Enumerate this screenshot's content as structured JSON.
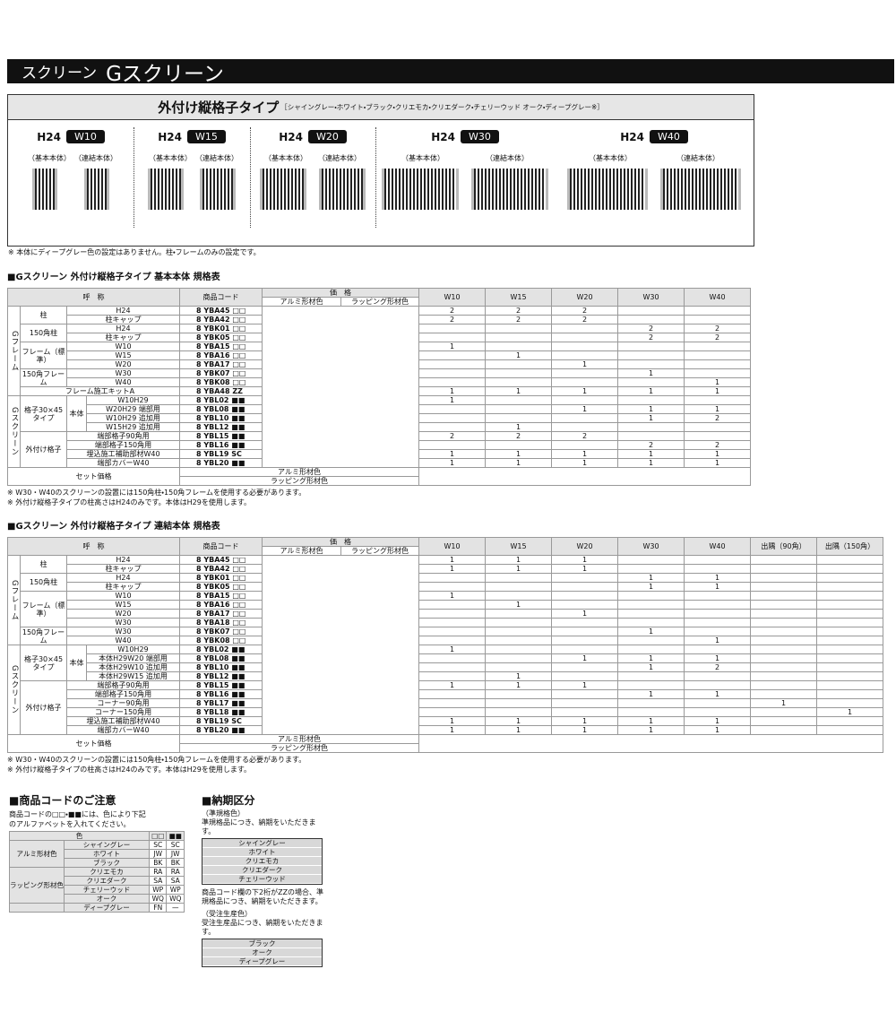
{
  "header": {
    "category": "スクリーン",
    "title": "Gスクリーン"
  },
  "panel": {
    "title": "外付け縦格子タイプ",
    "colors": "［シャイングレー・ホワイト・ブラック・クリエモカ・クリエダーク・チェリーウッド オーク・ディープグレー※］",
    "labels": [
      "（基本本体）",
      "（連結本体）"
    ],
    "items": [
      {
        "height": "H24",
        "width": "W10"
      },
      {
        "height": "H24",
        "width": "W15"
      },
      {
        "height": "H24",
        "width": "W20"
      },
      {
        "height": "H24",
        "width": "W30"
      },
      {
        "height": "H24",
        "width": "W40"
      }
    ],
    "note": "※ 本体にディープグレー色の設定はありません。柱・フレームのみの設定です。"
  },
  "tables": [
    {
      "title": "■Gスクリーン 外付け縦格子タイプ 基本本体 規格表",
      "head": {
        "name": "呼　称",
        "code": "商品コード",
        "price": "価　格",
        "alu": "アルミ形材色",
        "wrap": "ラッピング形材色"
      },
      "cols": [
        "W10",
        "W15",
        "W20",
        "W30",
        "W40"
      ],
      "sections": [
        {
          "label": "Gフレーム",
          "groups": [
            {
              "label": "柱",
              "rows": [
                {
                  "name": "H24",
                  "code": "8 YBA45 □□",
                  "qty": [
                    2,
                    2,
                    2,
                    null,
                    null
                  ]
                },
                {
                  "name": "柱キャップ",
                  "code": "8 YBA42 □□",
                  "qty": [
                    2,
                    2,
                    2,
                    null,
                    null
                  ]
                }
              ]
            },
            {
              "label": "150角柱",
              "rows": [
                {
                  "name": "H24",
                  "code": "8 YBK01 □□",
                  "qty": [
                    null,
                    null,
                    null,
                    2,
                    2
                  ]
                },
                {
                  "name": "柱キャップ",
                  "code": "8 YBK05 □□",
                  "qty": [
                    null,
                    null,
                    null,
                    2,
                    2
                  ]
                }
              ]
            },
            {
              "label": "フレーム（標準）",
              "rows": [
                {
                  "name": "W10",
                  "code": "8 YBA15 □□",
                  "qty": [
                    1,
                    null,
                    null,
                    null,
                    null
                  ]
                },
                {
                  "name": "W15",
                  "code": "8 YBA16 □□",
                  "qty": [
                    null,
                    1,
                    null,
                    null,
                    null
                  ]
                },
                {
                  "name": "W20",
                  "code": "8 YBA17 □□",
                  "qty": [
                    null,
                    null,
                    1,
                    null,
                    null
                  ]
                }
              ]
            },
            {
              "label": "150角フレーム",
              "rows": [
                {
                  "name": "W30",
                  "code": "8 YBK07 □□",
                  "qty": [
                    null,
                    null,
                    null,
                    1,
                    null
                  ]
                },
                {
                  "name": "W40",
                  "code": "8 YBK08 □□",
                  "qty": [
                    null,
                    null,
                    null,
                    null,
                    1
                  ]
                }
              ]
            },
            {
              "label": null,
              "rows": [
                {
                  "name": "フレーム施工キットA",
                  "code": "8 YBA48 ZZ",
                  "qty": [
                    1,
                    1,
                    1,
                    1,
                    1
                  ]
                }
              ]
            }
          ]
        },
        {
          "label": "Gスクリーン",
          "groups": [
            {
              "label": "格子30×45タイプ",
              "sub": "本体",
              "rows": [
                {
                  "name": "W10H29",
                  "code": "8 YBL02 ■■",
                  "qty": [
                    1,
                    null,
                    null,
                    null,
                    null
                  ]
                },
                {
                  "name": "W20H29 端部用",
                  "code": "8 YBL08 ■■",
                  "qty": [
                    null,
                    null,
                    1,
                    1,
                    1
                  ]
                },
                {
                  "name": "W10H29 追加用",
                  "code": "8 YBL10 ■■",
                  "qty": [
                    null,
                    null,
                    null,
                    1,
                    2
                  ]
                },
                {
                  "name": "W15H29 追加用",
                  "code": "8 YBL12 ■■",
                  "qty": [
                    null,
                    1,
                    null,
                    null,
                    null
                  ]
                }
              ]
            },
            {
              "label": "外付け格子",
              "rows": [
                {
                  "name": "端部格子90角用",
                  "code": "8 YBL15 ■■",
                  "qty": [
                    2,
                    2,
                    2,
                    null,
                    null
                  ]
                },
                {
                  "name": "端部格子150角用",
                  "code": "8 YBL16 ■■",
                  "qty": [
                    null,
                    null,
                    null,
                    2,
                    2
                  ]
                },
                {
                  "name": "埋込施工補助部材W40",
                  "code": "8 YBL19 SC",
                  "qty": [
                    1,
                    1,
                    1,
                    1,
                    1
                  ]
                },
                {
                  "name": "端部カバーW40",
                  "code": "8 YBL20 ■■",
                  "qty": [
                    1,
                    1,
                    1,
                    1,
                    1
                  ]
                }
              ]
            }
          ]
        }
      ],
      "set": {
        "label": "セット価格",
        "alu": "アルミ形材色",
        "wrap": "ラッピング形材色"
      },
      "notes": [
        "※ W30・W40のスクリーンの設置には150角柱・150角フレームを使用する必要があります。",
        "※ 外付け縦格子タイプの柱高さはH24のみです。本体はH29を使用します。"
      ]
    },
    {
      "title": "■Gスクリーン 外付け縦格子タイプ 連結本体 規格表",
      "head": {
        "name": "呼　称",
        "code": "商品コード",
        "price": "価　格",
        "alu": "アルミ形材色",
        "wrap": "ラッピング形材色"
      },
      "cols": [
        "W10",
        "W15",
        "W20",
        "W30",
        "W40",
        "出隅（90角）",
        "出隅（150角）"
      ],
      "sections": [
        {
          "label": "Gフレーム",
          "groups": [
            {
              "label": "柱",
              "rows": [
                {
                  "name": "H24",
                  "code": "8 YBA45 □□",
                  "qty": [
                    1,
                    1,
                    1,
                    null,
                    null,
                    null,
                    null
                  ]
                },
                {
                  "name": "柱キャップ",
                  "code": "8 YBA42 □□",
                  "qty": [
                    1,
                    1,
                    1,
                    null,
                    null,
                    null,
                    null
                  ]
                }
              ]
            },
            {
              "label": "150角柱",
              "rows": [
                {
                  "name": "H24",
                  "code": "8 YBK01 □□",
                  "qty": [
                    null,
                    null,
                    null,
                    1,
                    1,
                    null,
                    null
                  ]
                },
                {
                  "name": "柱キャップ",
                  "code": "8 YBK05 □□",
                  "qty": [
                    null,
                    null,
                    null,
                    1,
                    1,
                    null,
                    null
                  ]
                }
              ]
            },
            {
              "label": "フレーム（標準）",
              "rows": [
                {
                  "name": "W10",
                  "code": "8 YBA15 □□",
                  "qty": [
                    1,
                    null,
                    null,
                    null,
                    null,
                    null,
                    null
                  ]
                },
                {
                  "name": "W15",
                  "code": "8 YBA16 □□",
                  "qty": [
                    null,
                    1,
                    null,
                    null,
                    null,
                    null,
                    null
                  ]
                },
                {
                  "name": "W20",
                  "code": "8 YBA17 □□",
                  "qty": [
                    null,
                    null,
                    1,
                    null,
                    null,
                    null,
                    null
                  ]
                },
                {
                  "name": "W30",
                  "code": "8 YBA18 □□",
                  "qty": [
                    null,
                    null,
                    null,
                    null,
                    null,
                    null,
                    null
                  ]
                }
              ]
            },
            {
              "label": "150角フレーム",
              "rows": [
                {
                  "name": "W30",
                  "code": "8 YBK07 □□",
                  "qty": [
                    null,
                    null,
                    null,
                    1,
                    null,
                    null,
                    null
                  ]
                },
                {
                  "name": "W40",
                  "code": "8 YBK08 □□",
                  "qty": [
                    null,
                    null,
                    null,
                    null,
                    1,
                    null,
                    null
                  ]
                }
              ]
            }
          ]
        },
        {
          "label": "Gスクリーン",
          "groups": [
            {
              "label": "格子30×45タイプ",
              "sub": "本体",
              "rows": [
                {
                  "name": "W10H29",
                  "code": "8 YBL02 ■■",
                  "qty": [
                    1,
                    null,
                    null,
                    null,
                    null,
                    null,
                    null
                  ]
                },
                {
                  "name": "本体H29W20 端部用",
                  "code": "8 YBL08 ■■",
                  "qty": [
                    null,
                    null,
                    1,
                    1,
                    1,
                    null,
                    null
                  ]
                },
                {
                  "name": "本体H29W10 追加用",
                  "code": "8 YBL10 ■■",
                  "qty": [
                    null,
                    null,
                    null,
                    1,
                    2,
                    null,
                    null
                  ]
                },
                {
                  "name": "本体H29W15 追加用",
                  "code": "8 YBL12 ■■",
                  "qty": [
                    null,
                    1,
                    null,
                    null,
                    null,
                    null,
                    null
                  ]
                }
              ]
            },
            {
              "label": "外付け格子",
              "rows": [
                {
                  "name": "端部格子90角用",
                  "code": "8 YBL15 ■■",
                  "qty": [
                    1,
                    1,
                    1,
                    null,
                    null,
                    null,
                    null
                  ]
                },
                {
                  "name": "端部格子150角用",
                  "code": "8 YBL16 ■■",
                  "qty": [
                    null,
                    null,
                    null,
                    1,
                    1,
                    null,
                    null
                  ]
                },
                {
                  "name": "コーナー90角用",
                  "code": "8 YBL17 ■■",
                  "qty": [
                    null,
                    null,
                    null,
                    null,
                    null,
                    1,
                    null
                  ]
                },
                {
                  "name": "コーナー150角用",
                  "code": "8 YBL18 ■■",
                  "qty": [
                    null,
                    null,
                    null,
                    null,
                    null,
                    null,
                    1
                  ]
                },
                {
                  "name": "埋込施工補助部材W40",
                  "code": "8 YBL19 SC",
                  "qty": [
                    1,
                    1,
                    1,
                    1,
                    1,
                    null,
                    null
                  ]
                },
                {
                  "name": "端部カバーW40",
                  "code": "8 YBL20 ■■",
                  "qty": [
                    1,
                    1,
                    1,
                    1,
                    1,
                    null,
                    null
                  ]
                }
              ]
            }
          ]
        }
      ],
      "set": {
        "label": "セット価格",
        "alu": "アルミ形材色",
        "wrap": "ラッピング形材色"
      },
      "notes": [
        "※ W30・W40のスクリーンの設置には150角柱・150角フレームを使用する必要があります。",
        "※ 外付け縦格子タイプの柱高さはH24のみです。本体はH29を使用します。"
      ]
    }
  ],
  "code_note": {
    "title": "■商品コードのご注意",
    "text": "商品コードの□□・■■には、色により下記のアルファベットを入れてください。",
    "head": [
      "色",
      "□□",
      "■■"
    ],
    "groups": [
      {
        "label": "アルミ形材色",
        "rows": [
          [
            "シャイングレー",
            "SC",
            "SC"
          ],
          [
            "ホワイト",
            "JW",
            "JW"
          ],
          [
            "ブラック",
            "BK",
            "BK"
          ]
        ]
      },
      {
        "label": "ラッピング形材色",
        "rows": [
          [
            "クリエモカ",
            "RA",
            "RA"
          ],
          [
            "クリエダーク",
            "SA",
            "SA"
          ],
          [
            "チェリーウッド",
            "WP",
            "WP"
          ],
          [
            "オーク",
            "WQ",
            "WQ"
          ]
        ]
      },
      {
        "label": null,
        "rows": [
          [
            "ディープグレー",
            "FN",
            "—"
          ]
        ]
      }
    ]
  },
  "delivery": {
    "title": "■納期区分",
    "standard": {
      "heading": "（準規格色）",
      "text": "準規格品につき、納期をいただきます。",
      "colors": [
        "シャイングレー",
        "ホワイト",
        "クリエモカ",
        "クリエダーク",
        "チェリーウッド"
      ]
    },
    "zz_note": "商品コード欄の下2桁がZZの場合、準規格品につき、納期をいただきます。",
    "order": {
      "heading": "（受注生産色）",
      "text": "受注生産品につき、納期をいただきます。",
      "colors": [
        "ブラック",
        "オーク",
        "ディープグレー"
      ]
    }
  }
}
